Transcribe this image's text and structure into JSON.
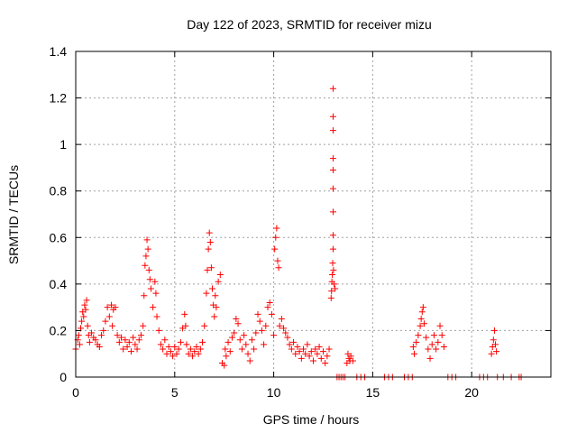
{
  "chart_data": {
    "type": "scatter",
    "title": "Day 122 of 2023, SRMTID for receiver mizu",
    "xlabel": "GPS time / hours",
    "ylabel": "SRMTID / TECUs",
    "xlim": [
      0,
      24
    ],
    "ylim": [
      0,
      1.4
    ],
    "xticks": [
      0,
      5,
      10,
      15,
      20
    ],
    "xtick_labels": [
      "0",
      "5",
      "10",
      "15",
      "20"
    ],
    "yticks": [
      0,
      0.2,
      0.4,
      0.6,
      0.8,
      1.0,
      1.2,
      1.4
    ],
    "ytick_labels": [
      "0",
      "0.2",
      "0.4",
      "0.6",
      "0.8",
      "1",
      "1.2",
      "1.4"
    ],
    "grid": true,
    "marker": "+",
    "color": "#ff0000",
    "series": [
      {
        "name": "SRMTID",
        "points": [
          [
            0.0,
            0.12
          ],
          [
            0.1,
            0.16
          ],
          [
            0.15,
            0.18
          ],
          [
            0.2,
            0.14
          ],
          [
            0.25,
            0.21
          ],
          [
            0.3,
            0.24
          ],
          [
            0.35,
            0.28
          ],
          [
            0.4,
            0.26
          ],
          [
            0.45,
            0.31
          ],
          [
            0.5,
            0.29
          ],
          [
            0.55,
            0.33
          ],
          [
            0.6,
            0.22
          ],
          [
            0.65,
            0.18
          ],
          [
            0.7,
            0.15
          ],
          [
            0.8,
            0.19
          ],
          [
            0.9,
            0.17
          ],
          [
            1.0,
            0.16
          ],
          [
            1.1,
            0.14
          ],
          [
            1.2,
            0.13
          ],
          [
            1.3,
            0.18
          ],
          [
            1.4,
            0.2
          ],
          [
            1.5,
            0.24
          ],
          [
            1.6,
            0.3
          ],
          [
            1.7,
            0.26
          ],
          [
            1.8,
            0.31
          ],
          [
            1.85,
            0.22
          ],
          [
            1.9,
            0.29
          ],
          [
            2.0,
            0.3
          ],
          [
            2.1,
            0.18
          ],
          [
            2.2,
            0.15
          ],
          [
            2.3,
            0.17
          ],
          [
            2.4,
            0.12
          ],
          [
            2.5,
            0.16
          ],
          [
            2.6,
            0.13
          ],
          [
            2.7,
            0.15
          ],
          [
            2.8,
            0.11
          ],
          [
            2.9,
            0.17
          ],
          [
            3.0,
            0.14
          ],
          [
            3.1,
            0.12
          ],
          [
            3.2,
            0.16
          ],
          [
            3.3,
            0.18
          ],
          [
            3.4,
            0.22
          ],
          [
            3.45,
            0.35
          ],
          [
            3.5,
            0.48
          ],
          [
            3.55,
            0.52
          ],
          [
            3.6,
            0.59
          ],
          [
            3.65,
            0.55
          ],
          [
            3.7,
            0.46
          ],
          [
            3.75,
            0.42
          ],
          [
            3.8,
            0.38
          ],
          [
            3.9,
            0.3
          ],
          [
            4.0,
            0.41
          ],
          [
            4.05,
            0.36
          ],
          [
            4.1,
            0.26
          ],
          [
            4.2,
            0.2
          ],
          [
            4.3,
            0.14
          ],
          [
            4.4,
            0.12
          ],
          [
            4.5,
            0.16
          ],
          [
            4.6,
            0.1
          ],
          [
            4.7,
            0.13
          ],
          [
            4.8,
            0.11
          ],
          [
            4.9,
            0.09
          ],
          [
            5.0,
            0.13
          ],
          [
            5.1,
            0.1
          ],
          [
            5.2,
            0.12
          ],
          [
            5.3,
            0.15
          ],
          [
            5.4,
            0.21
          ],
          [
            5.5,
            0.27
          ],
          [
            5.55,
            0.22
          ],
          [
            5.6,
            0.14
          ],
          [
            5.7,
            0.1
          ],
          [
            5.8,
            0.12
          ],
          [
            5.9,
            0.09
          ],
          [
            6.0,
            0.11
          ],
          [
            6.1,
            0.13
          ],
          [
            6.2,
            0.1
          ],
          [
            6.3,
            0.12
          ],
          [
            6.4,
            0.15
          ],
          [
            6.5,
            0.22
          ],
          [
            6.6,
            0.36
          ],
          [
            6.65,
            0.46
          ],
          [
            6.7,
            0.55
          ],
          [
            6.75,
            0.62
          ],
          [
            6.8,
            0.58
          ],
          [
            6.85,
            0.47
          ],
          [
            6.9,
            0.38
          ],
          [
            6.95,
            0.31
          ],
          [
            7.0,
            0.26
          ],
          [
            7.05,
            0.35
          ],
          [
            7.1,
            0.3
          ],
          [
            7.2,
            0.41
          ],
          [
            7.3,
            0.44
          ],
          [
            7.4,
            0.06
          ],
          [
            7.5,
            0.05
          ],
          [
            7.55,
            0.12
          ],
          [
            7.6,
            0.09
          ],
          [
            7.7,
            0.15
          ],
          [
            7.8,
            0.11
          ],
          [
            7.9,
            0.17
          ],
          [
            8.0,
            0.19
          ],
          [
            8.1,
            0.25
          ],
          [
            8.2,
            0.23
          ],
          [
            8.3,
            0.16
          ],
          [
            8.4,
            0.12
          ],
          [
            8.5,
            0.18
          ],
          [
            8.6,
            0.14
          ],
          [
            8.7,
            0.1
          ],
          [
            8.8,
            0.07
          ],
          [
            8.9,
            0.16
          ],
          [
            9.0,
            0.12
          ],
          [
            9.1,
            0.19
          ],
          [
            9.2,
            0.27
          ],
          [
            9.3,
            0.24
          ],
          [
            9.4,
            0.2
          ],
          [
            9.5,
            0.14
          ],
          [
            9.6,
            0.22
          ],
          [
            9.7,
            0.3
          ],
          [
            9.8,
            0.32
          ],
          [
            9.9,
            0.27
          ],
          [
            10.0,
            0.18
          ],
          [
            10.05,
            0.55
          ],
          [
            10.1,
            0.6
          ],
          [
            10.15,
            0.64
          ],
          [
            10.2,
            0.5
          ],
          [
            10.25,
            0.47
          ],
          [
            10.3,
            0.22
          ],
          [
            10.4,
            0.25
          ],
          [
            10.5,
            0.21
          ],
          [
            10.6,
            0.19
          ],
          [
            10.7,
            0.17
          ],
          [
            10.8,
            0.14
          ],
          [
            10.9,
            0.12
          ],
          [
            11.0,
            0.15
          ],
          [
            11.1,
            0.1
          ],
          [
            11.2,
            0.13
          ],
          [
            11.3,
            0.11
          ],
          [
            11.4,
            0.08
          ],
          [
            11.5,
            0.12
          ],
          [
            11.6,
            0.1
          ],
          [
            11.7,
            0.14
          ],
          [
            11.8,
            0.09
          ],
          [
            11.9,
            0.11
          ],
          [
            12.0,
            0.07
          ],
          [
            12.1,
            0.12
          ],
          [
            12.2,
            0.1
          ],
          [
            12.3,
            0.13
          ],
          [
            12.4,
            0.08
          ],
          [
            12.5,
            0.11
          ],
          [
            12.6,
            0.06
          ],
          [
            12.7,
            0.09
          ],
          [
            12.8,
            0.12
          ],
          [
            12.9,
            0.34
          ],
          [
            12.92,
            0.37
          ],
          [
            12.94,
            0.41
          ],
          [
            12.96,
            0.44
          ],
          [
            12.98,
            0.49
          ],
          [
            13.0,
            0.55
          ],
          [
            13.0,
            0.61
          ],
          [
            13.0,
            0.71
          ],
          [
            13.0,
            0.81
          ],
          [
            13.0,
            0.89
          ],
          [
            13.0,
            0.94
          ],
          [
            13.0,
            1.06
          ],
          [
            13.0,
            1.12
          ],
          [
            13.0,
            1.24
          ],
          [
            13.02,
            0.46
          ],
          [
            13.05,
            0.4
          ],
          [
            13.1,
            0.38
          ],
          [
            13.2,
            0.0
          ],
          [
            13.3,
            0.0
          ],
          [
            13.4,
            0.0
          ],
          [
            13.5,
            0.0
          ],
          [
            13.6,
            0.0
          ],
          [
            13.7,
            0.06
          ],
          [
            13.75,
            0.1
          ],
          [
            13.8,
            0.08
          ],
          [
            13.85,
            0.07
          ],
          [
            13.9,
            0.09
          ],
          [
            14.0,
            0.07
          ],
          [
            14.2,
            0.0
          ],
          [
            14.4,
            0.0
          ],
          [
            14.6,
            0.0
          ],
          [
            15.6,
            0.0
          ],
          [
            15.8,
            0.0
          ],
          [
            16.0,
            0.0
          ],
          [
            16.6,
            0.0
          ],
          [
            16.8,
            0.0
          ],
          [
            17.0,
            0.0
          ],
          [
            17.05,
            0.13
          ],
          [
            17.1,
            0.1
          ],
          [
            17.2,
            0.15
          ],
          [
            17.3,
            0.18
          ],
          [
            17.4,
            0.22
          ],
          [
            17.45,
            0.25
          ],
          [
            17.5,
            0.28
          ],
          [
            17.55,
            0.3
          ],
          [
            17.6,
            0.23
          ],
          [
            17.7,
            0.17
          ],
          [
            17.8,
            0.12
          ],
          [
            17.9,
            0.08
          ],
          [
            18.0,
            0.14
          ],
          [
            18.1,
            0.18
          ],
          [
            18.2,
            0.12
          ],
          [
            18.3,
            0.15
          ],
          [
            18.4,
            0.22
          ],
          [
            18.5,
            0.18
          ],
          [
            18.6,
            0.13
          ],
          [
            18.8,
            0.0
          ],
          [
            19.0,
            0.0
          ],
          [
            19.2,
            0.0
          ],
          [
            20.4,
            0.0
          ],
          [
            20.6,
            0.0
          ],
          [
            20.8,
            0.0
          ],
          [
            21.0,
            0.1
          ],
          [
            21.05,
            0.13
          ],
          [
            21.1,
            0.16
          ],
          [
            21.15,
            0.2
          ],
          [
            21.2,
            0.14
          ],
          [
            21.25,
            0.11
          ],
          [
            21.3,
            0.0
          ],
          [
            21.6,
            0.0
          ],
          [
            22.0,
            0.0
          ],
          [
            22.4,
            0.0
          ],
          [
            22.5,
            0.0
          ]
        ]
      }
    ]
  }
}
